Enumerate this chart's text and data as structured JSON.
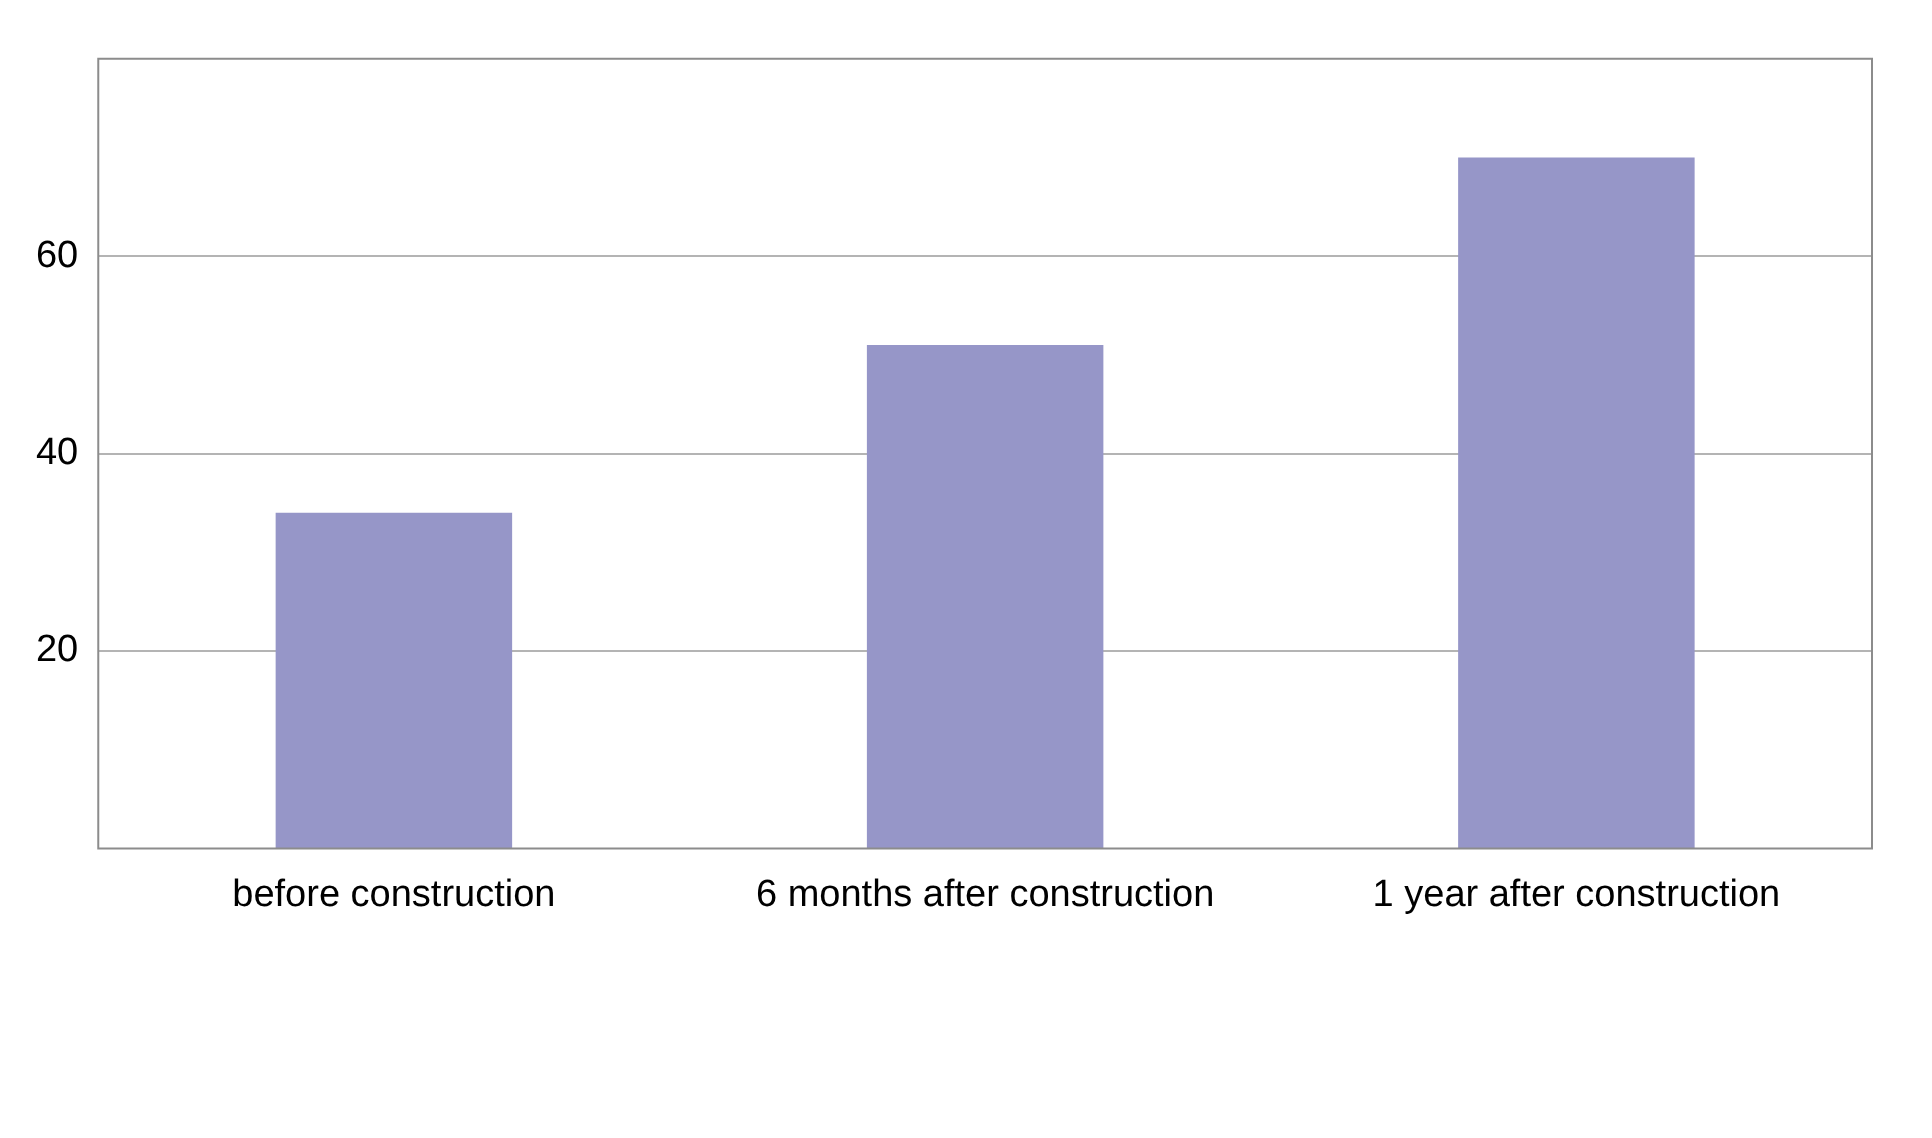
{
  "chart_data": {
    "type": "bar",
    "categories": [
      "before construction",
      "6 months after construction",
      "1 year after construction"
    ],
    "values": [
      34,
      51,
      70
    ],
    "color": "#9696c8",
    "ylim": [
      0,
      80
    ],
    "yticks": [
      20,
      40,
      60
    ],
    "grid": "y"
  }
}
